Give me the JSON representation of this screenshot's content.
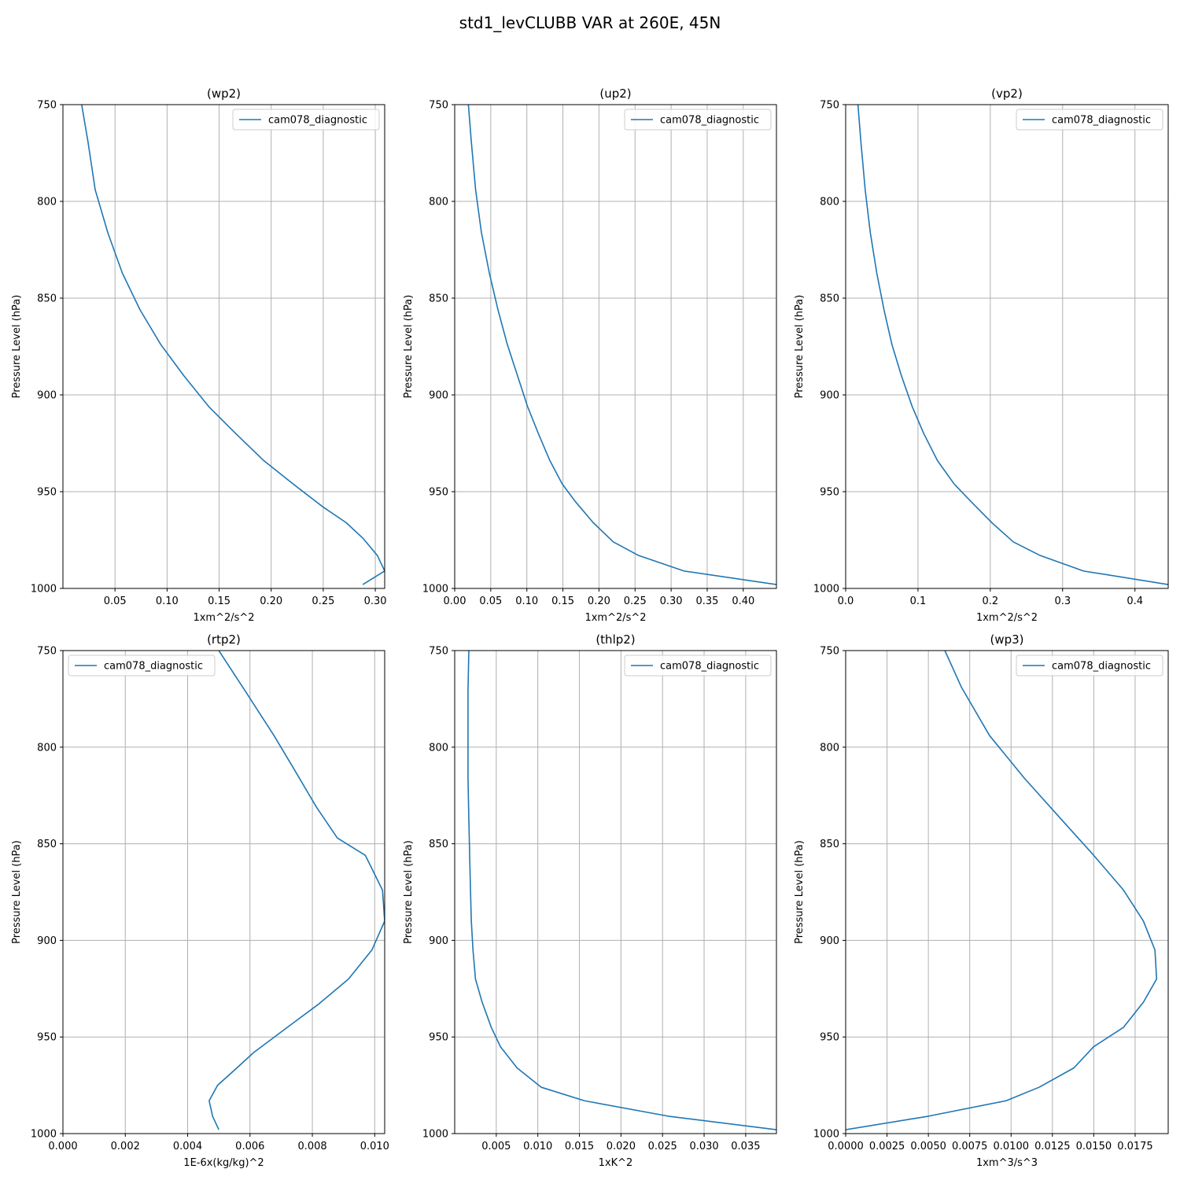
{
  "figure": {
    "title": "std1_levCLUBB VAR at 260E, 45N"
  },
  "colors": {
    "series": "#1f77b4",
    "grid": "#b0b0b0",
    "axes": "#000000",
    "legend_border": "#cccccc"
  },
  "chart_data": [
    {
      "type": "line",
      "title": "(wp2)",
      "xlabel": "1xm^2/s^2",
      "ylabel": "Pressure Level (hPa)",
      "xlim": [
        0.0,
        0.309
      ],
      "ylim": [
        1000,
        750
      ],
      "xticks": [
        0.05,
        0.1,
        0.15,
        0.2,
        0.25,
        0.3
      ],
      "xtick_labels": [
        "0.05",
        "0.10",
        "0.15",
        "0.20",
        "0.25",
        "0.30"
      ],
      "yticks": [
        750,
        800,
        850,
        900,
        950,
        1000
      ],
      "ytick_labels": [
        "750",
        "800",
        "850",
        "900",
        "950",
        "1000"
      ],
      "grid": true,
      "legend": "upper-right",
      "series": [
        {
          "name": "cam078_diagnostic",
          "x": [
            0.018,
            0.024,
            0.031,
            0.043,
            0.057,
            0.074,
            0.094,
            0.116,
            0.14,
            0.166,
            0.193,
            0.221,
            0.25,
            0.272,
            0.288,
            0.302,
            0.309,
            0.288
          ],
          "y": [
            750,
            769,
            794,
            816,
            837,
            856,
            874,
            890,
            906,
            920,
            934,
            946,
            958,
            966,
            974,
            983,
            991,
            998
          ]
        }
      ]
    },
    {
      "type": "line",
      "title": "(up2)",
      "xlabel": "1xm^2/s^2",
      "ylabel": "Pressure Level (hPa)",
      "xlim": [
        0.0,
        0.446
      ],
      "ylim": [
        1000,
        750
      ],
      "xticks": [
        0.0,
        0.05,
        0.1,
        0.15,
        0.2,
        0.25,
        0.3,
        0.35,
        0.4
      ],
      "xtick_labels": [
        "0.00",
        "0.05",
        "0.10",
        "0.15",
        "0.20",
        "0.25",
        "0.30",
        "0.35",
        "0.40"
      ],
      "yticks": [
        750,
        800,
        850,
        900,
        950,
        1000
      ],
      "ytick_labels": [
        "750",
        "800",
        "850",
        "900",
        "950",
        "1000"
      ],
      "grid": true,
      "legend": "upper-right",
      "series": [
        {
          "name": "cam078_diagnostic",
          "x": [
            0.019,
            0.023,
            0.029,
            0.037,
            0.048,
            0.06,
            0.073,
            0.087,
            0.101,
            0.116,
            0.132,
            0.149,
            0.167,
            0.192,
            0.22,
            0.255,
            0.318,
            0.446
          ],
          "y": [
            750,
            769,
            794,
            816,
            837,
            856,
            874,
            890,
            906,
            920,
            934,
            946,
            955,
            966,
            976,
            983,
            991,
            998
          ]
        }
      ]
    },
    {
      "type": "line",
      "title": "(vp2)",
      "xlabel": "1xm^2/s^2",
      "ylabel": "Pressure Level (hPa)",
      "xlim": [
        0.0,
        0.446
      ],
      "ylim": [
        1000,
        750
      ],
      "xticks": [
        0.0,
        0.1,
        0.2,
        0.3,
        0.4
      ],
      "xtick_labels": [
        "0.0",
        "0.1",
        "0.2",
        "0.3",
        "0.4"
      ],
      "yticks": [
        750,
        800,
        850,
        900,
        950,
        1000
      ],
      "ytick_labels": [
        "750",
        "800",
        "850",
        "900",
        "950",
        "1000"
      ],
      "grid": true,
      "legend": "upper-right",
      "series": [
        {
          "name": "cam078_diagnostic",
          "x": [
            0.017,
            0.021,
            0.027,
            0.034,
            0.043,
            0.053,
            0.064,
            0.077,
            0.092,
            0.108,
            0.127,
            0.15,
            0.173,
            0.202,
            0.232,
            0.269,
            0.329,
            0.446
          ],
          "y": [
            750,
            769,
            794,
            816,
            837,
            856,
            874,
            890,
            906,
            920,
            934,
            946,
            955,
            966,
            976,
            983,
            991,
            998
          ]
        }
      ]
    },
    {
      "type": "line",
      "title": "(rtp2)",
      "xlabel": "1E-6x(kg/kg)^2",
      "ylabel": "Pressure Level (hPa)",
      "xlim": [
        0.0,
        0.01032
      ],
      "ylim": [
        1000,
        750
      ],
      "xticks": [
        0.0,
        0.002,
        0.004,
        0.006,
        0.008,
        0.01
      ],
      "xtick_labels": [
        "0.000",
        "0.002",
        "0.004",
        "0.006",
        "0.008",
        "0.010"
      ],
      "yticks": [
        750,
        800,
        850,
        900,
        950,
        1000
      ],
      "ytick_labels": [
        "750",
        "800",
        "850",
        "900",
        "950",
        "1000"
      ],
      "grid": true,
      "legend": "upper-left",
      "series": [
        {
          "name": "cam078_diagnostic",
          "x": [
            0.005,
            0.00585,
            0.00677,
            0.0074,
            0.00813,
            0.0088,
            0.0097,
            0.01025,
            0.01032,
            0.00991,
            0.00916,
            0.0082,
            0.0072,
            0.00612,
            0.00558,
            0.00496,
            0.00469,
            0.0048,
            0.005
          ],
          "y": [
            750,
            771,
            794,
            811,
            831,
            847,
            856,
            874,
            890,
            905,
            920,
            933,
            945,
            958,
            966,
            975,
            983,
            991,
            998
          ]
        }
      ]
    },
    {
      "type": "line",
      "title": "(thlp2)",
      "xlabel": "1xK^2",
      "ylabel": "Pressure Level (hPa)",
      "xlim": [
        0.0,
        0.0387
      ],
      "ylim": [
        1000,
        750
      ],
      "xticks": [
        0.005,
        0.01,
        0.015,
        0.02,
        0.025,
        0.03,
        0.035
      ],
      "xtick_labels": [
        "0.005",
        "0.010",
        "0.015",
        "0.020",
        "0.025",
        "0.030",
        "0.035"
      ],
      "yticks": [
        750,
        800,
        850,
        900,
        950,
        1000
      ],
      "ytick_labels": [
        "750",
        "800",
        "850",
        "900",
        "950",
        "1000"
      ],
      "grid": true,
      "legend": "upper-right",
      "series": [
        {
          "name": "cam078_diagnostic",
          "x": [
            0.0017,
            0.0016,
            0.0016,
            0.0016,
            0.0017,
            0.0018,
            0.0019,
            0.002,
            0.0022,
            0.0025,
            0.0033,
            0.0044,
            0.0055,
            0.0075,
            0.0104,
            0.0156,
            0.0257,
            0.0387
          ],
          "y": [
            750,
            771,
            794,
            816,
            837,
            856,
            874,
            890,
            905,
            920,
            932,
            945,
            955,
            966,
            976,
            983,
            991,
            998
          ]
        }
      ]
    },
    {
      "type": "line",
      "title": "(wp3)",
      "xlabel": "1xm^3/s^3",
      "ylabel": "Pressure Level (hPa)",
      "xlim": [
        0.0,
        0.0195
      ],
      "ylim": [
        1000,
        750
      ],
      "xticks": [
        0.0,
        0.0025,
        0.005,
        0.0075,
        0.01,
        0.0125,
        0.015,
        0.0175
      ],
      "xtick_labels": [
        "0.0000",
        "0.0025",
        "0.0050",
        "0.0075",
        "0.0100",
        "0.0125",
        "0.0150",
        "0.0175"
      ],
      "yticks": [
        750,
        800,
        850,
        900,
        950,
        1000
      ],
      "ytick_labels": [
        "750",
        "800",
        "850",
        "900",
        "950",
        "1000"
      ],
      "grid": true,
      "legend": "upper-right",
      "series": [
        {
          "name": "cam078_diagnostic",
          "x": [
            0.006,
            0.007,
            0.0087,
            0.0108,
            0.013,
            0.015,
            0.0168,
            0.018,
            0.0187,
            0.0188,
            0.018,
            0.0168,
            0.015,
            0.0138,
            0.0117,
            0.0097,
            0.005,
            0.0
          ],
          "y": [
            750,
            769,
            794,
            816,
            837,
            856,
            874,
            890,
            905,
            920,
            932,
            945,
            955,
            966,
            976,
            983,
            991,
            998
          ]
        }
      ]
    }
  ]
}
